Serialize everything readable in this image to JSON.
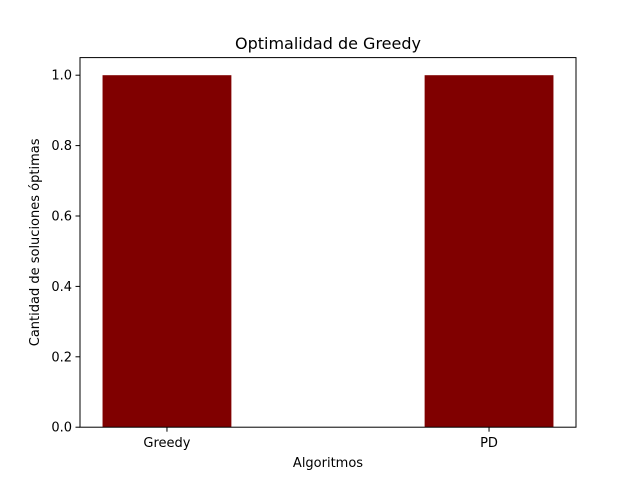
{
  "chart_data": {
    "type": "bar",
    "title": "Optimalidad de Greedy",
    "xlabel": "Algoritmos",
    "ylabel": "Cantidad de soluciones óptimas",
    "categories": [
      "Greedy",
      "PD"
    ],
    "values": [
      1.0,
      1.0
    ],
    "ylim": [
      0,
      1.05
    ],
    "yticks": [
      "0.0",
      "0.2",
      "0.4",
      "0.6",
      "0.8",
      "1.0"
    ],
    "bar_color": "#800000",
    "grid": false,
    "legend": false
  }
}
